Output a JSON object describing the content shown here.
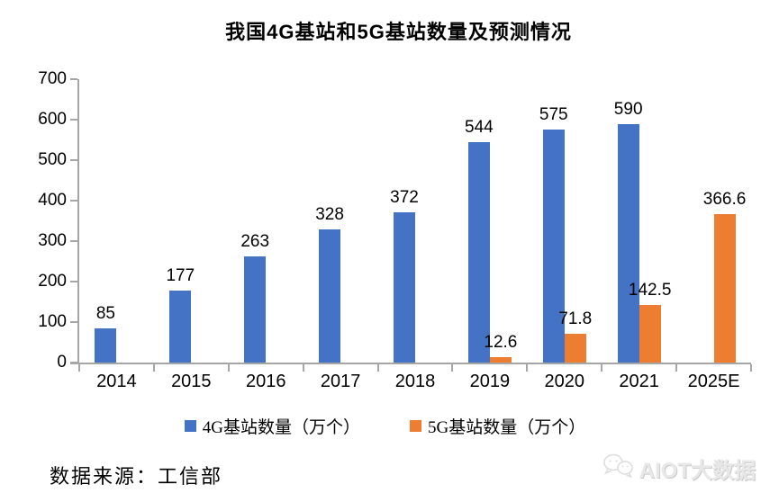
{
  "title": "我国4G基站和5G基站数量及预测情况",
  "chart_data": {
    "type": "bar",
    "categories": [
      "2014",
      "2015",
      "2016",
      "2017",
      "2018",
      "2019",
      "2020",
      "2021",
      "2025E"
    ],
    "series": [
      {
        "name": "4G基站数量（万个）",
        "color": "#4472C4",
        "values": [
          85,
          177,
          263,
          328,
          372,
          544,
          575,
          590,
          null
        ],
        "labels": [
          "85",
          "177",
          "263",
          "328",
          "372",
          "544",
          "575",
          "590",
          ""
        ]
      },
      {
        "name": "5G基站数量（万个）",
        "color": "#ED7D31",
        "values": [
          null,
          null,
          null,
          null,
          null,
          12.6,
          71.8,
          142.5,
          366.6
        ],
        "labels": [
          "",
          "",
          "",
          "",
          "",
          "12.6",
          "71.8",
          "142.5",
          "366.6"
        ]
      }
    ],
    "title": "我国4G基站和5G基站数量及预测情况",
    "xlabel": "",
    "ylabel": "",
    "ylim": [
      0,
      700
    ],
    "yticks": [
      0,
      100,
      200,
      300,
      400,
      500,
      600,
      700
    ],
    "grid": false,
    "legend_position": "bottom"
  },
  "footer": {
    "source": "数据来源：工信部",
    "watermark": "AIOT大数据"
  },
  "icons": {
    "watermark_icon": "wechat-icon"
  },
  "colors": {
    "series_4g": "#4472C4",
    "series_5g": "#ED7D31",
    "axis": "#a6a6a6",
    "text": "#000000",
    "watermark": "#e8e8e8",
    "background": "#ffffff"
  }
}
